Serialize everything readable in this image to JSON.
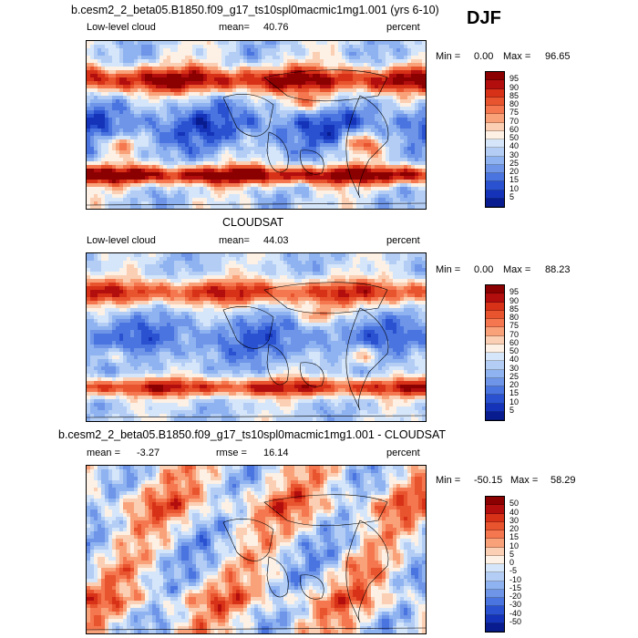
{
  "season": "DJF",
  "panels": [
    {
      "title": "b.cesm2_2_beta05.B1850.f09_g17_ts10spl0macmic1mg1.001 (yrs 6-10)",
      "left_label": "Low-level cloud",
      "stat_label": "mean=",
      "stat_value": "40.76",
      "units": "percent",
      "min_label": "Min =",
      "min_value": "0.00",
      "max_label": "Max =",
      "max_value": "96.65",
      "colorbar_labels": [
        "95",
        "90",
        "85",
        "80",
        "75",
        "70",
        "60",
        "50",
        "40",
        "30",
        "25",
        "20",
        "15",
        "10",
        "5"
      ],
      "colorbar_colors": [
        "#8b0000",
        "#b30e0e",
        "#d73218",
        "#e8542e",
        "#f4774f",
        "#f9a27a",
        "#fbcfb3",
        "#fdf0e4",
        "#d6e6fa",
        "#b3cdf5",
        "#8fb3f0",
        "#6e95e8",
        "#4a74df",
        "#2a52d0",
        "#1433b8",
        "#091c8f"
      ],
      "field": "low"
    },
    {
      "title": "CLOUDSAT",
      "left_label": "Low-level cloud",
      "stat_label": "mean=",
      "stat_value": "44.03",
      "units": "percent",
      "min_label": "Min =",
      "min_value": "0.00",
      "max_label": "Max =",
      "max_value": "88.23",
      "colorbar_labels": [
        "95",
        "90",
        "85",
        "80",
        "75",
        "70",
        "60",
        "50",
        "40",
        "30",
        "25",
        "20",
        "15",
        "10",
        "5"
      ],
      "colorbar_colors": [
        "#8b0000",
        "#b30e0e",
        "#d73218",
        "#e8542e",
        "#f4774f",
        "#f9a27a",
        "#fbcfb3",
        "#fdf0e4",
        "#d6e6fa",
        "#b3cdf5",
        "#8fb3f0",
        "#6e95e8",
        "#4a74df",
        "#2a52d0",
        "#1433b8",
        "#091c8f"
      ],
      "field": "obs"
    },
    {
      "title": "b.cesm2_2_beta05.B1850.f09_g17_ts10spl0macmic1mg1.001 - CLOUDSAT",
      "left_label": "mean =",
      "stat_label": "rmse =",
      "left_value": "-3.27",
      "stat_value": "16.14",
      "units": "percent",
      "min_label": "Min =",
      "min_value": "-50.15",
      "max_label": "Max =",
      "max_value": "58.29",
      "colorbar_labels": [
        "50",
        "40",
        "30",
        "20",
        "15",
        "10",
        "5",
        "0",
        "-5",
        "-10",
        "-15",
        "-20",
        "-30",
        "-40",
        "-50"
      ],
      "colorbar_colors": [
        "#8b0000",
        "#b30e0e",
        "#d73218",
        "#e8542e",
        "#f4774f",
        "#f9a27a",
        "#fbcfb3",
        "#fdf0e4",
        "#d6e6fa",
        "#b3cdf5",
        "#8fb3f0",
        "#6e95e8",
        "#4a74df",
        "#2a52d0",
        "#1433b8",
        "#091c8f"
      ],
      "field": "diff"
    }
  ]
}
